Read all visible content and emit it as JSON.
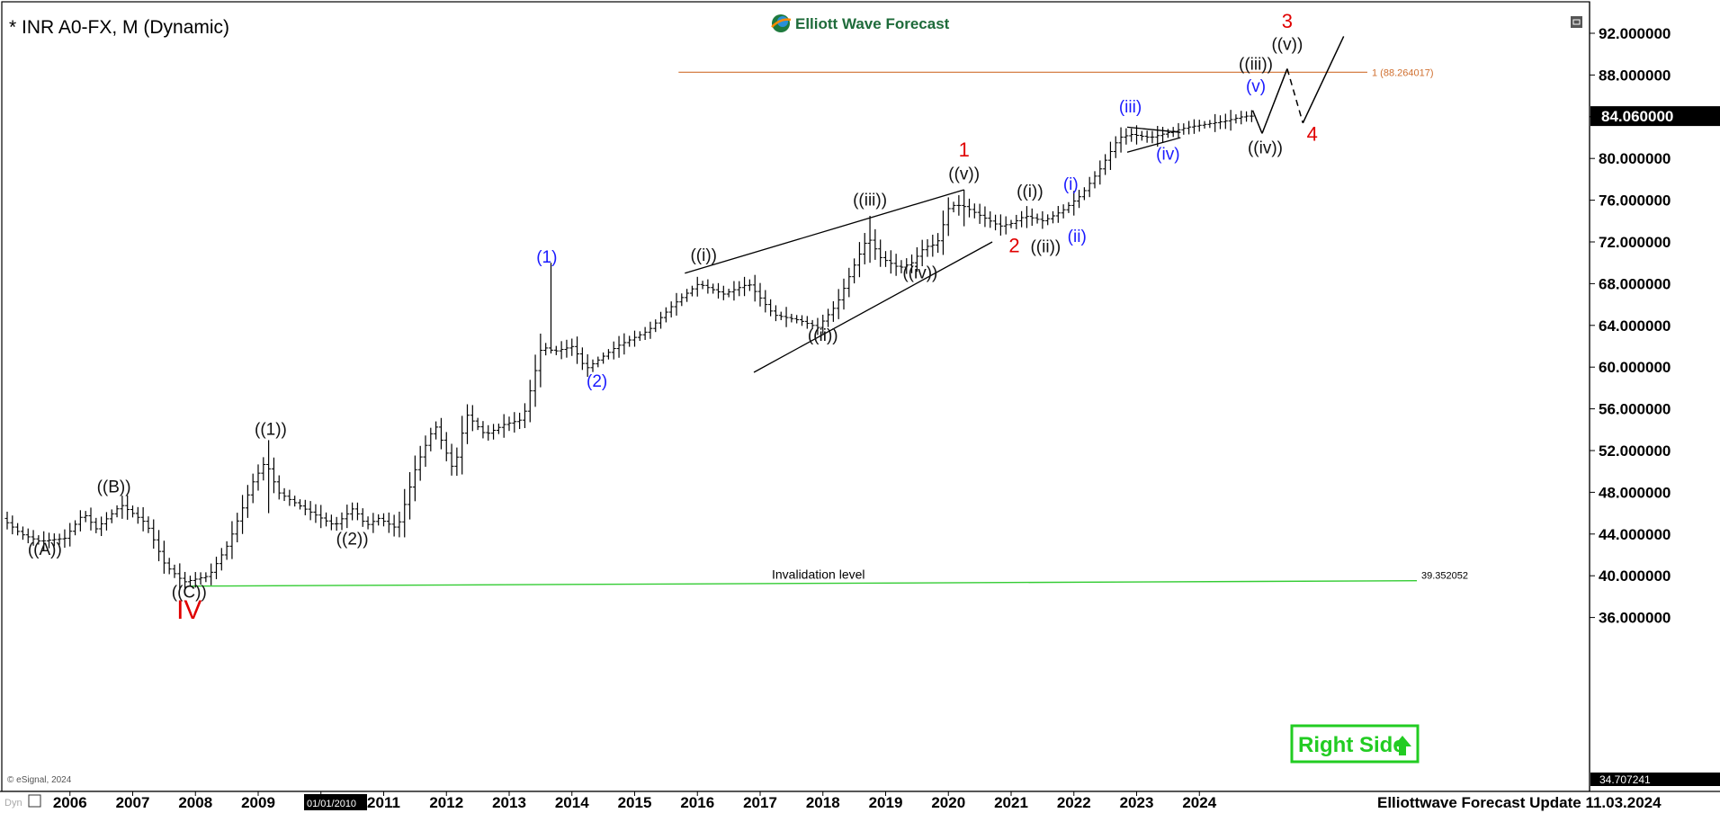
{
  "header": {
    "symbol_title": "* INR A0-FX, M (Dynamic)",
    "logo_text": "Elliott Wave Forecast"
  },
  "footer": {
    "update_text": "Elliottwave Forecast Update 11.03.2024",
    "copyright": "© eSignal, 2024",
    "corner_tag": "Dyn",
    "date_marker": "01/01/2010"
  },
  "badge": {
    "text": "Right Side",
    "color": "#22cc22"
  },
  "colors": {
    "wave_black": "#111111",
    "wave_blue": "#1a1aff",
    "wave_red": "#e00000",
    "fib_orange": "#d07030",
    "invalidation_green": "#33cc33"
  },
  "chart_data": {
    "type": "ohlc",
    "title": "* INR A0-FX, M (Dynamic)",
    "x_range": [
      2005.0,
      2025.85
    ],
    "ylim": [
      35.0,
      94.0
    ],
    "y_ticks": [
      "92.000000",
      "88.000000",
      "84.000000",
      "80.000000",
      "76.000000",
      "72.000000",
      "68.000000",
      "64.000000",
      "60.000000",
      "56.000000",
      "52.000000",
      "48.000000",
      "44.000000",
      "40.000000",
      "36.000000"
    ],
    "x_ticks": [
      "2006",
      "2007",
      "2008",
      "2009",
      "2010",
      "2011",
      "2012",
      "2013",
      "2014",
      "2015",
      "2016",
      "2017",
      "2018",
      "2019",
      "2020",
      "2021",
      "2022",
      "2023",
      "2024"
    ],
    "price_anchors": [
      [
        2005.0,
        45.5
      ],
      [
        2005.3,
        44.0
      ],
      [
        2005.6,
        43.3
      ],
      [
        2006.0,
        43.6
      ],
      [
        2006.3,
        46.0
      ],
      [
        2006.5,
        44.5
      ],
      [
        2006.9,
        46.8
      ],
      [
        2007.3,
        45.0
      ],
      [
        2007.6,
        41.0
      ],
      [
        2007.9,
        39.4
      ],
      [
        2008.3,
        40.0
      ],
      [
        2008.6,
        43.0
      ],
      [
        2009.0,
        49.0
      ],
      [
        2009.2,
        51.0
      ],
      [
        2009.4,
        48.0
      ],
      [
        2009.8,
        46.5
      ],
      [
        2010.3,
        44.8
      ],
      [
        2010.6,
        46.5
      ],
      [
        2010.8,
        44.8
      ],
      [
        2011.0,
        45.5
      ],
      [
        2011.3,
        44.5
      ],
      [
        2011.6,
        50.5
      ],
      [
        2011.9,
        54.5
      ],
      [
        2012.2,
        50.0
      ],
      [
        2012.4,
        55.5
      ],
      [
        2012.7,
        53.5
      ],
      [
        2013.0,
        54.5
      ],
      [
        2013.3,
        55.0
      ],
      [
        2013.6,
        62.0
      ],
      [
        2013.8,
        61.5
      ],
      [
        2014.1,
        62.0
      ],
      [
        2014.3,
        59.8
      ],
      [
        2014.8,
        62.0
      ],
      [
        2015.3,
        63.5
      ],
      [
        2015.7,
        66.0
      ],
      [
        2016.1,
        68.0
      ],
      [
        2016.5,
        67.0
      ],
      [
        2016.9,
        68.0
      ],
      [
        2017.3,
        65.0
      ],
      [
        2017.7,
        64.5
      ],
      [
        2018.0,
        63.8
      ],
      [
        2018.3,
        66.0
      ],
      [
        2018.6,
        70.0
      ],
      [
        2018.8,
        72.5
      ],
      [
        2019.0,
        70.5
      ],
      [
        2019.3,
        69.5
      ],
      [
        2019.5,
        70.0
      ],
      [
        2019.7,
        71.5
      ],
      [
        2019.9,
        71.8
      ],
      [
        2020.1,
        75.5
      ],
      [
        2020.3,
        75.5
      ],
      [
        2020.6,
        74.5
      ],
      [
        2020.9,
        73.5
      ],
      [
        2021.1,
        73.8
      ],
      [
        2021.3,
        74.5
      ],
      [
        2021.6,
        74.0
      ],
      [
        2021.9,
        75.0
      ],
      [
        2022.2,
        76.5
      ],
      [
        2022.5,
        79.0
      ],
      [
        2022.8,
        82.0
      ],
      [
        2023.0,
        82.3
      ],
      [
        2023.3,
        82.0
      ],
      [
        2023.6,
        82.5
      ],
      [
        2023.9,
        83.0
      ],
      [
        2024.2,
        83.3
      ],
      [
        2024.5,
        83.6
      ],
      [
        2024.8,
        84.06
      ]
    ],
    "last_price": "84.060000",
    "low_label": "34.707241",
    "fib_level": {
      "value": 88.264017,
      "label": "1 (88.264017)",
      "start_x": 2015.7
    },
    "invalidation": {
      "value": 39.352052,
      "value_label": "39.352052",
      "label": "Invalidation level",
      "start_x": 2007.9
    },
    "projection": [
      [
        2024.85,
        84.6
      ],
      [
        2025.0,
        82.4
      ],
      [
        2025.4,
        88.6
      ],
      [
        2025.65,
        83.4
      ],
      [
        2026.3,
        91.7
      ]
    ],
    "projection_dashed_segments": [
      1,
      2
    ],
    "channels": [
      [
        [
          2015.8,
          69.0
        ],
        [
          2020.25,
          77.0
        ]
      ],
      [
        [
          2016.9,
          59.5
        ],
        [
          2020.7,
          72.0
        ]
      ],
      [
        [
          2022.85,
          83.0
        ],
        [
          2023.7,
          82.5
        ]
      ],
      [
        [
          2022.85,
          80.6
        ],
        [
          2023.7,
          82.0
        ]
      ]
    ],
    "wave_labels": [
      {
        "text": "((A))",
        "x": 2005.6,
        "y": 42.0,
        "color": "black"
      },
      {
        "text": "((B))",
        "x": 2006.7,
        "y": 48.0,
        "color": "black"
      },
      {
        "text": "((C))",
        "x": 2007.9,
        "y": 37.9,
        "color": "black"
      },
      {
        "text": "IV",
        "x": 2007.9,
        "y": 35.9,
        "color": "red",
        "size": 30
      },
      {
        "text": "((1))",
        "x": 2009.2,
        "y": 53.5,
        "color": "black"
      },
      {
        "text": "((2))",
        "x": 2010.5,
        "y": 43.0,
        "color": "black"
      },
      {
        "text": "(1)",
        "x": 2013.6,
        "y": 70.0,
        "color": "blue"
      },
      {
        "text": "(2)",
        "x": 2014.4,
        "y": 58.1,
        "color": "blue"
      },
      {
        "text": "((i))",
        "x": 2016.1,
        "y": 70.2,
        "color": "black"
      },
      {
        "text": "((ii))",
        "x": 2018.0,
        "y": 62.5,
        "color": "black"
      },
      {
        "text": "((iii))",
        "x": 2018.75,
        "y": 75.5,
        "color": "black"
      },
      {
        "text": "((iv))",
        "x": 2019.55,
        "y": 68.5,
        "color": "black"
      },
      {
        "text": "((v))",
        "x": 2020.25,
        "y": 78.0,
        "color": "black"
      },
      {
        "text": "1",
        "x": 2020.25,
        "y": 80.2,
        "color": "red"
      },
      {
        "text": "2",
        "x": 2021.05,
        "y": 71.0,
        "color": "red"
      },
      {
        "text": "((i))",
        "x": 2021.3,
        "y": 76.3,
        "color": "black"
      },
      {
        "text": "((ii))",
        "x": 2021.55,
        "y": 71.0,
        "color": "black"
      },
      {
        "text": "(i)",
        "x": 2021.95,
        "y": 77.0,
        "color": "blue"
      },
      {
        "text": "(ii)",
        "x": 2022.05,
        "y": 72.0,
        "color": "blue"
      },
      {
        "text": "(iii)",
        "x": 2022.9,
        "y": 84.4,
        "color": "blue"
      },
      {
        "text": "(iv)",
        "x": 2023.5,
        "y": 79.9,
        "color": "blue"
      },
      {
        "text": "(v)",
        "x": 2024.9,
        "y": 86.4,
        "color": "blue"
      },
      {
        "text": "((iii))",
        "x": 2024.9,
        "y": 88.5,
        "color": "black"
      },
      {
        "text": "((iv))",
        "x": 2025.05,
        "y": 80.5,
        "color": "black"
      },
      {
        "text": "((v))",
        "x": 2025.4,
        "y": 90.4,
        "color": "black"
      },
      {
        "text": "3",
        "x": 2025.4,
        "y": 92.5,
        "color": "red"
      },
      {
        "text": "4",
        "x": 2025.8,
        "y": 81.7,
        "color": "red"
      }
    ]
  }
}
